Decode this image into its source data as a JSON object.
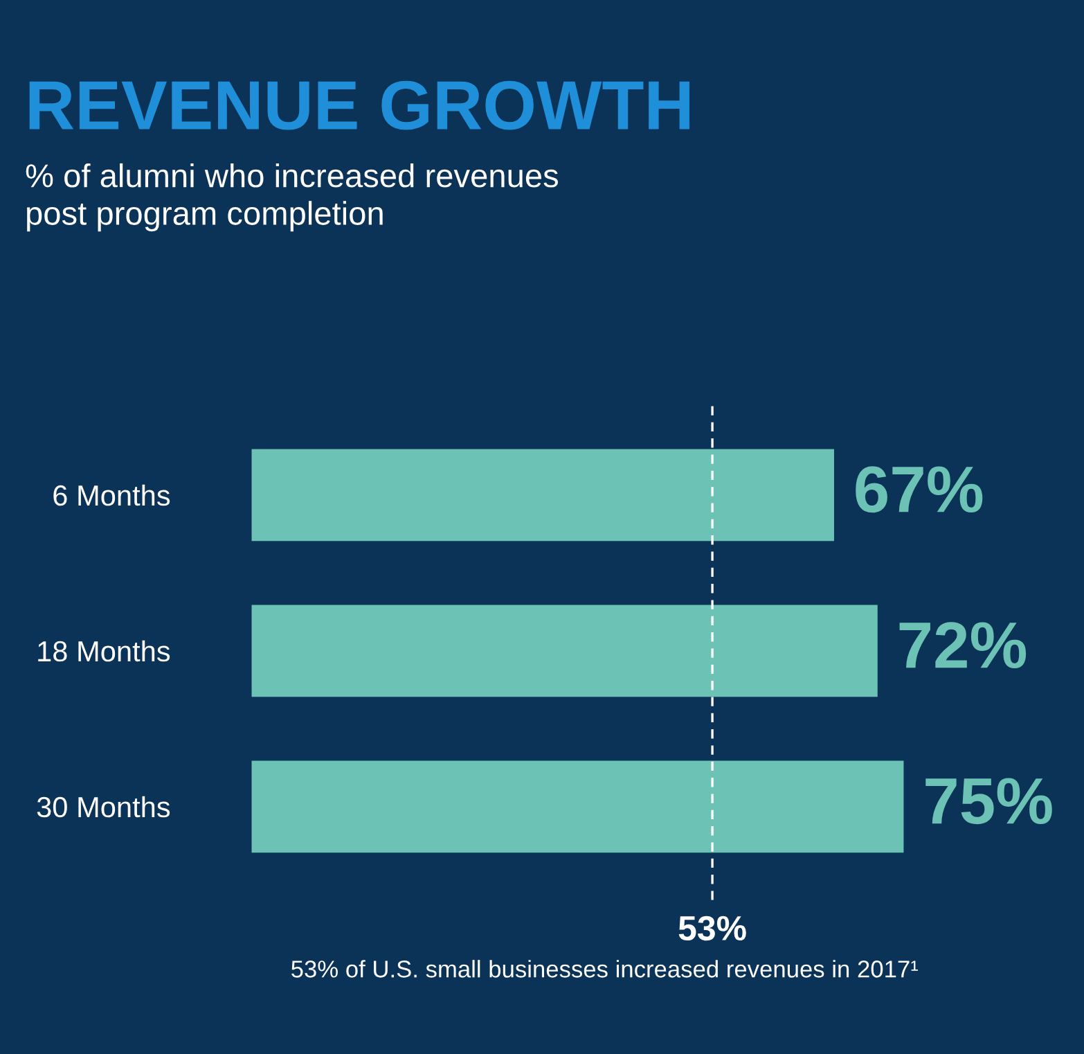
{
  "chart_data": {
    "type": "bar",
    "orientation": "horizontal",
    "title": "REVENUE GROWTH",
    "subtitle": "% of alumni who increased revenues\npost program completion",
    "categories": [
      "6 Months",
      "18 Months",
      "30 Months"
    ],
    "values": [
      67,
      72,
      75
    ],
    "color": "#6cc3b5",
    "value_labels": [
      "67%",
      "72%",
      "75%"
    ],
    "ref_lines": [
      {
        "axis": "x",
        "value": 53,
        "label": "53%",
        "color": "#ffffff",
        "line_style": "dashed"
      }
    ],
    "annotations": [
      "53% of U.S. small businesses increased revenues in 2017¹"
    ],
    "data_labels": false
  }
}
